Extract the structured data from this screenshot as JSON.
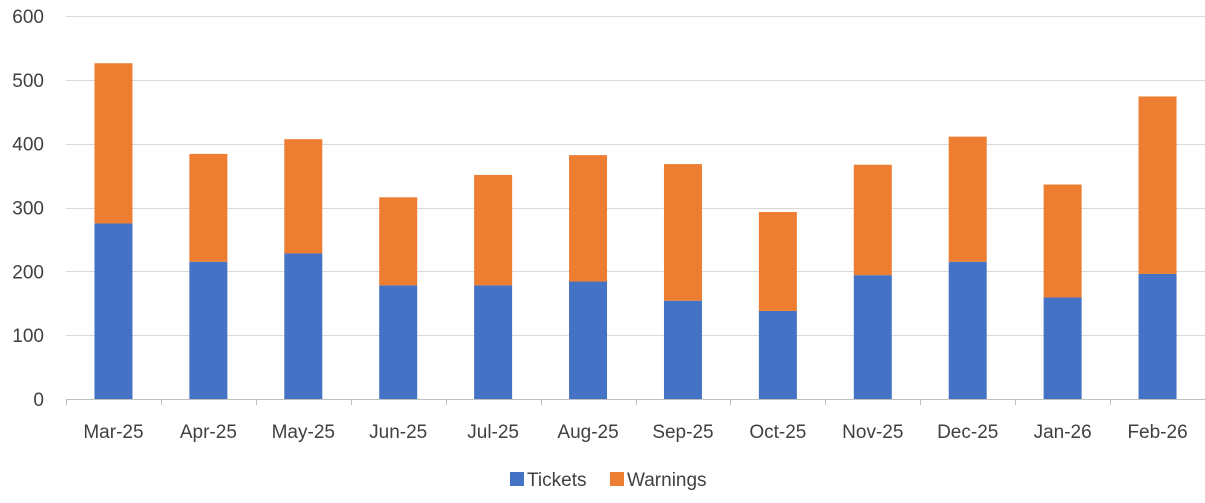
{
  "chart_data": {
    "type": "bar",
    "stacked": true,
    "categories": [
      "Mar-25",
      "Apr-25",
      "May-25",
      "Jun-25",
      "Jul-25",
      "Aug-25",
      "Sep-25",
      "Oct-25",
      "Nov-25",
      "Dec-25",
      "Jan-26",
      "Feb-26"
    ],
    "series": [
      {
        "name": "Tickets",
        "color": "#4472c4",
        "values": [
          275,
          215,
          228,
          178,
          178,
          184,
          154,
          138,
          194,
          215,
          159,
          196
        ]
      },
      {
        "name": "Warnings",
        "color": "#ed7d31",
        "values": [
          251,
          169,
          179,
          138,
          173,
          198,
          214,
          155,
          173,
          196,
          177,
          278
        ]
      }
    ],
    "ylim": [
      0,
      600
    ],
    "yticks": [
      "0",
      "100",
      "200",
      "300",
      "400",
      "500",
      "600"
    ],
    "grid": true,
    "legend_position": "bottom"
  }
}
